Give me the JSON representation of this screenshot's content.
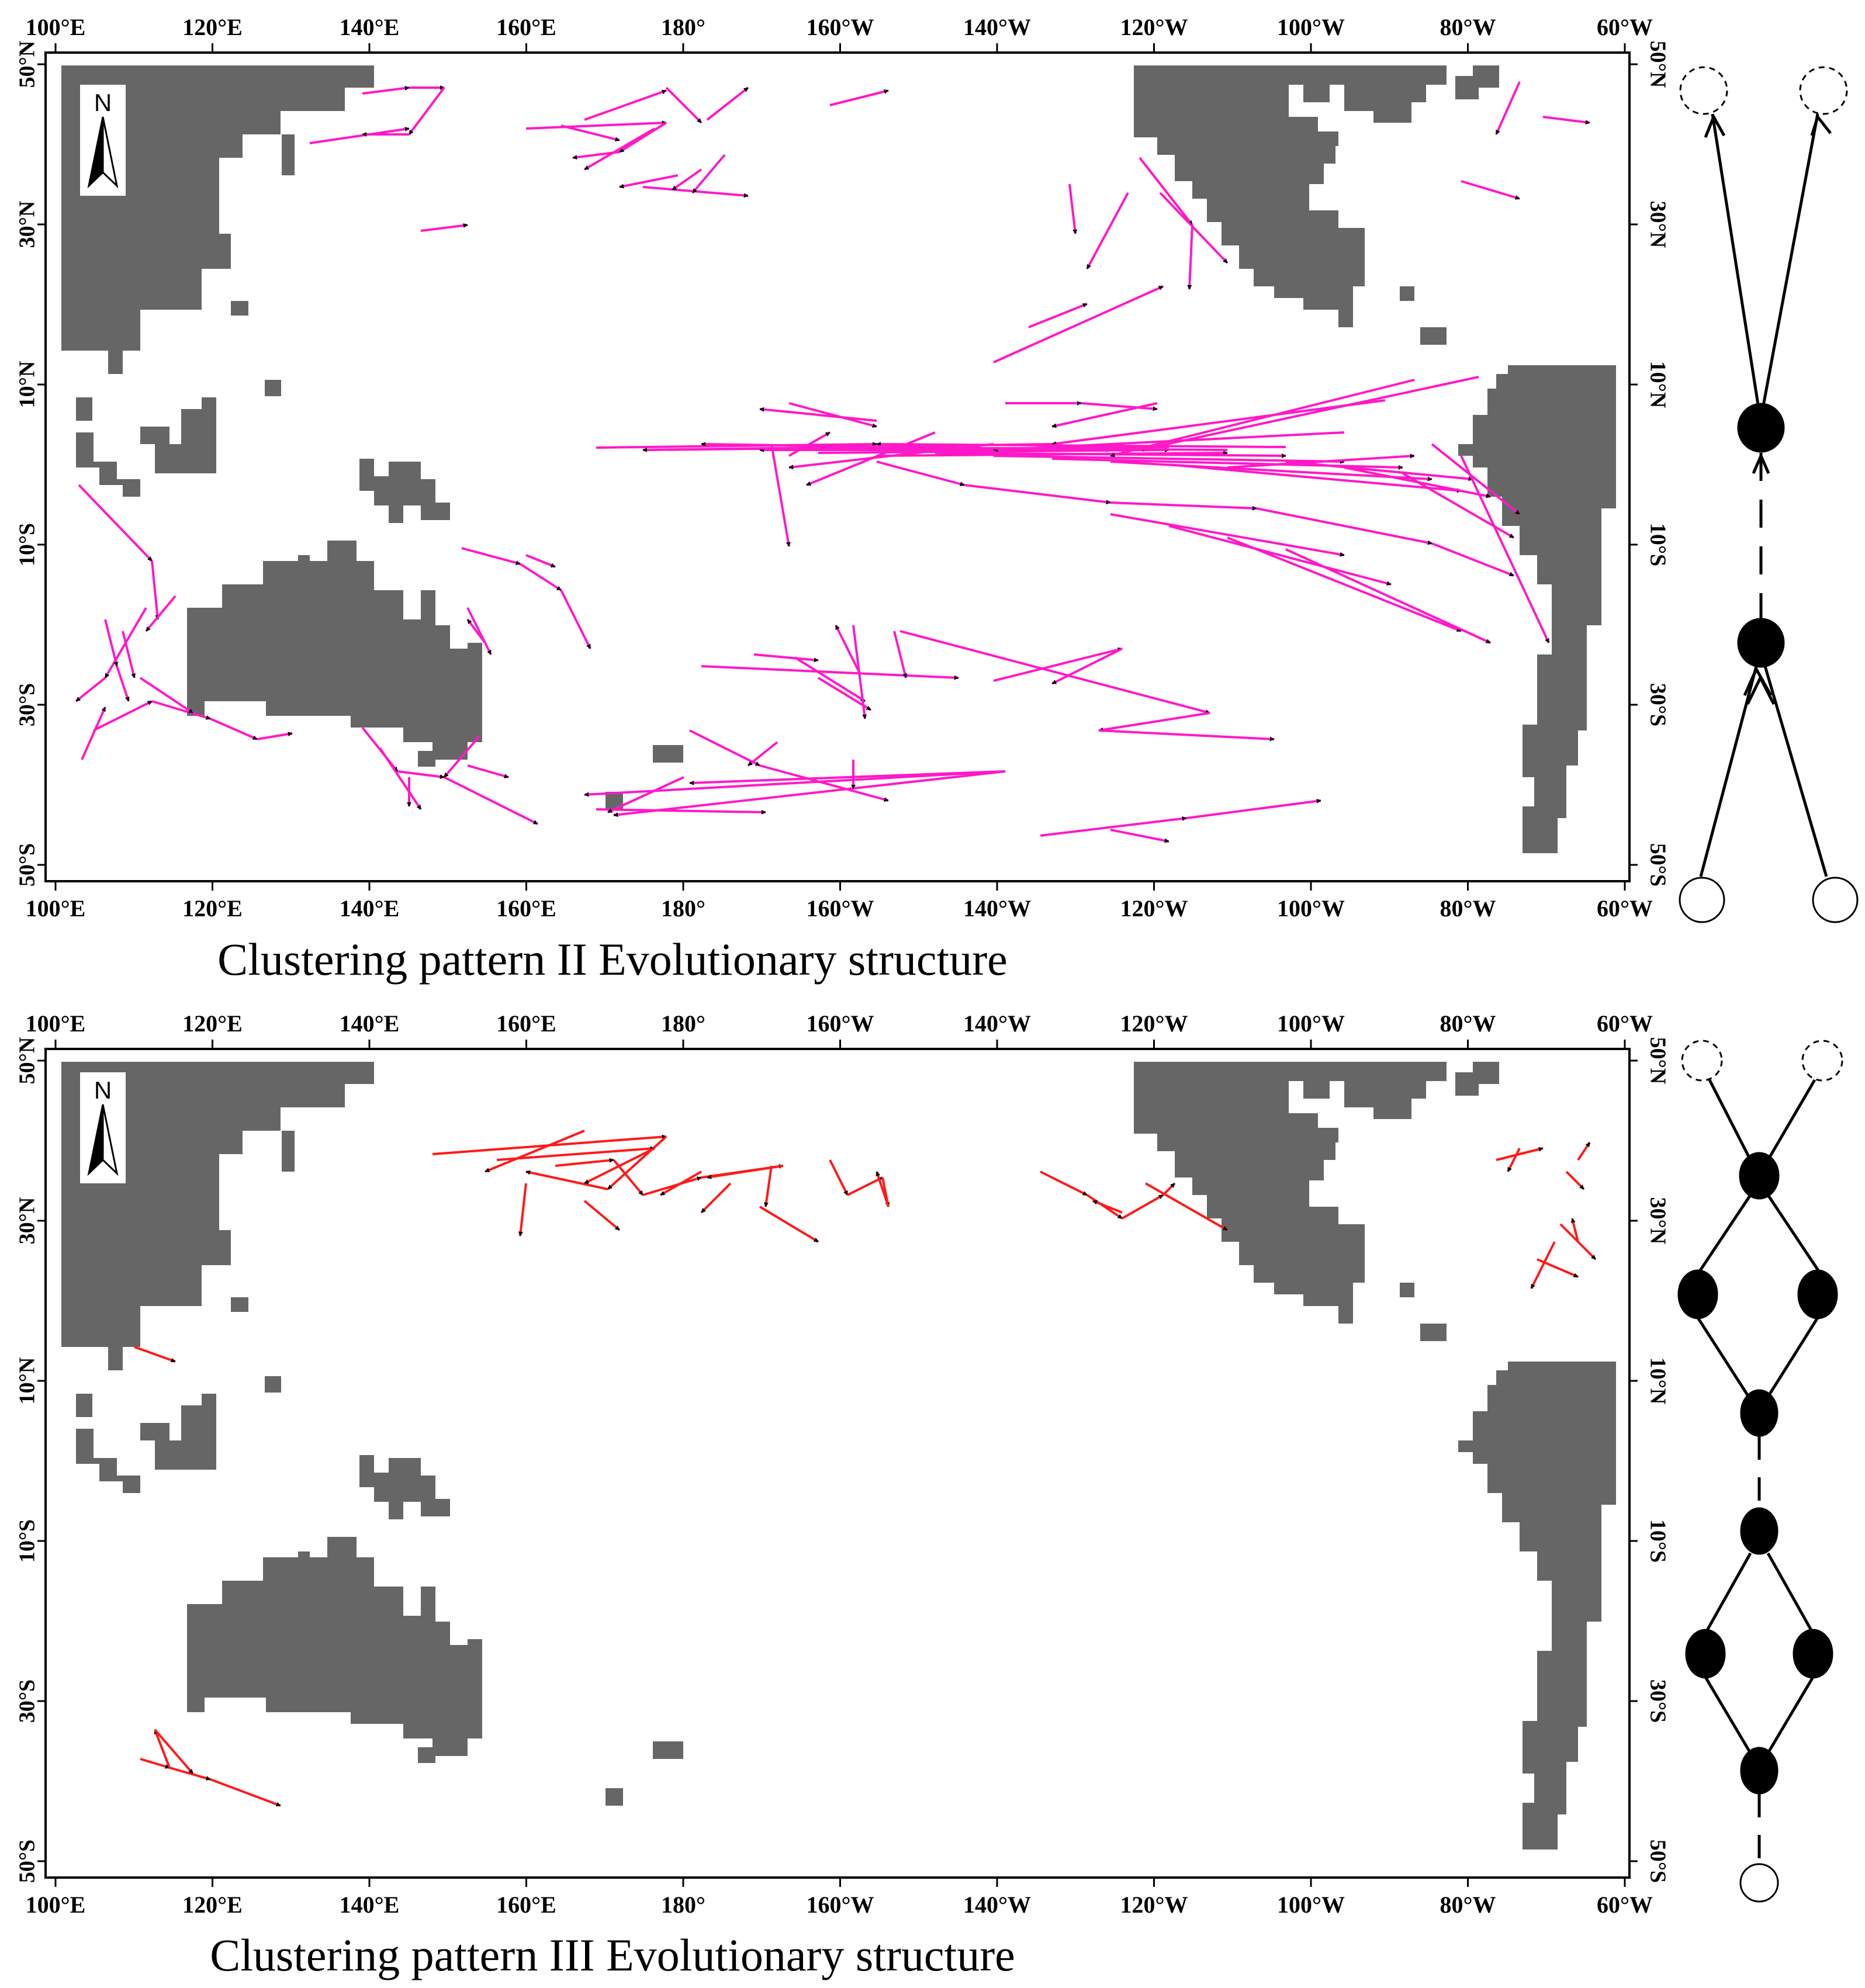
{
  "panels": [
    {
      "caption": "Clustering pattern II Evolutionary structure",
      "track_color": "#ff19c8",
      "north_label": "N",
      "x_ticks": [
        "100°E",
        "120°E",
        "140°E",
        "160°E",
        "180°",
        "160°W",
        "140°W",
        "120°W",
        "100°W",
        "80°W",
        "60°W"
      ],
      "y_ticks": [
        "50°N",
        "30°N",
        "10°N",
        "10°S",
        "30°S",
        "50°S"
      ]
    },
    {
      "caption": "Clustering pattern III Evolutionary structure",
      "track_color": "#ff1a1a",
      "north_label": "N",
      "x_ticks": [
        "100°E",
        "120°E",
        "140°E",
        "160°E",
        "180°",
        "160°W",
        "140°W",
        "120°W",
        "100°W",
        "80°W",
        "60°W"
      ],
      "y_ticks": [
        "50°N",
        "30°N",
        "10°N",
        "10°S",
        "30°S",
        "50°S"
      ]
    }
  ],
  "colors": {
    "land": "#666666",
    "frame": "#000000",
    "arrow": "#000000"
  }
}
